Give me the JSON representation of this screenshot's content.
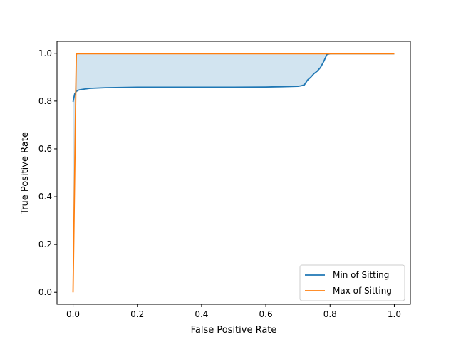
{
  "chart_data": {
    "type": "line",
    "xlabel": "False Positive Rate",
    "ylabel": "True Positive Rate",
    "xlim": [
      -0.05,
      1.05
    ],
    "ylim": [
      -0.05,
      1.05
    ],
    "xticks": [
      0.0,
      0.2,
      0.4,
      0.6,
      0.8,
      1.0
    ],
    "xtick_labels": [
      "0.0",
      "0.2",
      "0.4",
      "0.6",
      "0.8",
      "1.0"
    ],
    "yticks": [
      0.0,
      0.2,
      0.4,
      0.6,
      0.8,
      1.0
    ],
    "ytick_labels": [
      "0.0",
      "0.2",
      "0.4",
      "0.6",
      "0.8",
      "1.0"
    ],
    "grid": false,
    "legend_position": "lower-right",
    "fill_between": {
      "lower_series": "Min of Sitting",
      "upper_series": "Max of Sitting",
      "color": "#1f77b4",
      "opacity": 0.2
    },
    "series": [
      {
        "name": "Min of Sitting",
        "color": "#1f77b4",
        "x": [
          0.0,
          0.005,
          0.01,
          0.015,
          0.02,
          0.03,
          0.05,
          0.1,
          0.2,
          0.3,
          0.4,
          0.5,
          0.6,
          0.65,
          0.7,
          0.71,
          0.72,
          0.73,
          0.74,
          0.75,
          0.76,
          0.77,
          0.78,
          0.79,
          0.8,
          1.0
        ],
        "y": [
          0.797,
          0.83,
          0.84,
          0.845,
          0.847,
          0.849,
          0.853,
          0.856,
          0.858,
          0.858,
          0.858,
          0.858,
          0.859,
          0.86,
          0.862,
          0.864,
          0.868,
          0.888,
          0.9,
          0.915,
          0.925,
          0.94,
          0.965,
          0.995,
          0.998,
          0.998
        ]
      },
      {
        "name": "Max of Sitting",
        "color": "#ff7f0e",
        "x": [
          0.0,
          0.01,
          0.012,
          1.0
        ],
        "y": [
          0.0,
          0.995,
          0.998,
          0.998
        ]
      }
    ]
  }
}
